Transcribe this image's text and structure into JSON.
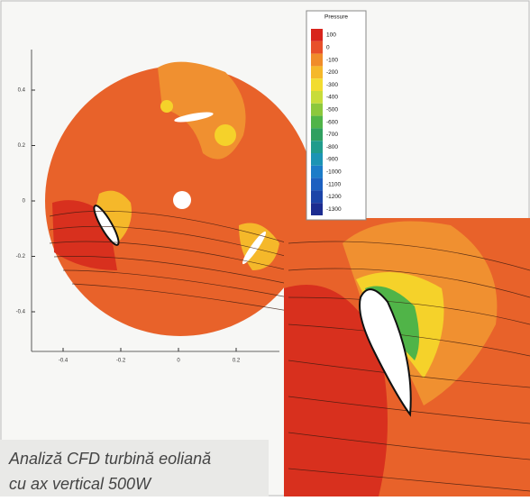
{
  "plot": {
    "y_ticks": [
      "0.4",
      "0.2",
      "0",
      "-0.2",
      "-0.4"
    ],
    "x_ticks": [
      "-0.4",
      "-0.2",
      "0",
      "0.2"
    ],
    "legend": {
      "title": "Pressure",
      "labels": [
        "100",
        "0",
        "-100",
        "-200",
        "-300",
        "-400",
        "-500",
        "-600",
        "-700",
        "-800",
        "-900",
        "-1000",
        "-1100",
        "-1200",
        "-1300"
      ],
      "colors": [
        "#d8241c",
        "#e8502a",
        "#f08c2a",
        "#f5b82a",
        "#f2dc30",
        "#c8dc3a",
        "#8cc83c",
        "#50b448",
        "#30a060",
        "#209c8c",
        "#1c94b4",
        "#1c7cc8",
        "#1c60c0",
        "#1c44a8",
        "#1c2c90"
      ]
    }
  },
  "caption": {
    "lines": [
      "Analiză CFD turbină eoliană",
      "cu ax vertical 500W"
    ]
  }
}
